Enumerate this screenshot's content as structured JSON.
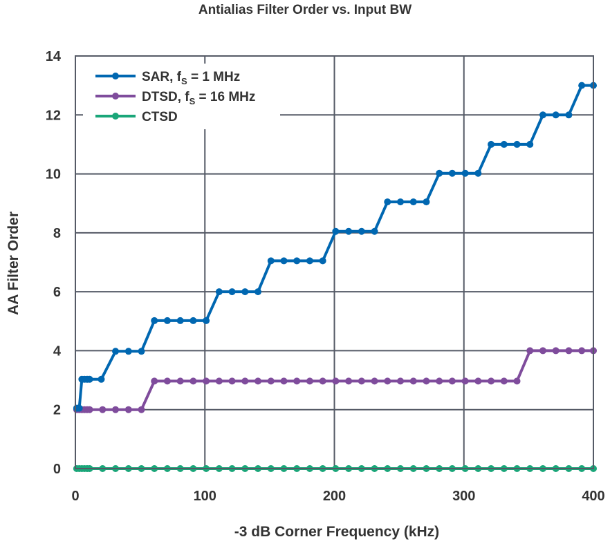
{
  "chart_data": {
    "type": "line",
    "title": "Antialias Filter Order vs. Input BW",
    "xlabel": "-3 dB Corner Frequency (kHz)",
    "ylabel": "AA Filter Order",
    "xlim": [
      0,
      400
    ],
    "ylim": [
      0,
      14
    ],
    "xticks": [
      0,
      100,
      200,
      300,
      400
    ],
    "yticks": [
      0,
      2,
      4,
      6,
      8,
      10,
      12,
      14
    ],
    "grid": true,
    "legend_position": "top-left",
    "series": [
      {
        "name": "SAR, fS = 1 MHz",
        "label_main": "SAR, f",
        "label_sub": "S",
        "label_tail": " = 1 MHz",
        "color": "#0067b1",
        "x": [
          1,
          2,
          3,
          5,
          7,
          9,
          11,
          20,
          31,
          41,
          51,
          61,
          71,
          81,
          91,
          101,
          111,
          121,
          131,
          141,
          151,
          161,
          171,
          181,
          191,
          201,
          211,
          221,
          231,
          241,
          251,
          261,
          271,
          281,
          291,
          301,
          311,
          321,
          331,
          341,
          351,
          361,
          371,
          381,
          391,
          400
        ],
        "y": [
          2.05,
          2.05,
          2.05,
          3.03,
          3.03,
          3.03,
          3.03,
          3.03,
          3.98,
          3.98,
          3.98,
          5.02,
          5.02,
          5.02,
          5.02,
          5.02,
          6.0,
          6.0,
          6.0,
          6.0,
          7.05,
          7.05,
          7.05,
          7.05,
          7.05,
          8.05,
          8.05,
          8.05,
          8.05,
          9.05,
          9.05,
          9.05,
          9.05,
          10.02,
          10.02,
          10.02,
          10.02,
          11.0,
          11.0,
          11.0,
          11.0,
          12.0,
          12.0,
          12.0,
          13.0,
          13.0
        ]
      },
      {
        "name": "DTSD, fS = 16 MHz",
        "label_main": "DTSD, f",
        "label_sub": "S",
        "label_tail": " = 16 MHz",
        "color": "#7f4c9c",
        "x": [
          1,
          3,
          5,
          7,
          9,
          11,
          21,
          31,
          41,
          51,
          61,
          71,
          81,
          91,
          101,
          111,
          121,
          131,
          141,
          151,
          161,
          171,
          181,
          191,
          201,
          211,
          221,
          231,
          241,
          251,
          261,
          271,
          281,
          291,
          301,
          311,
          321,
          331,
          341,
          351,
          361,
          371,
          381,
          391,
          400
        ],
        "y": [
          2.0,
          2.0,
          2.0,
          2.0,
          2.0,
          2.0,
          2.0,
          2.0,
          2.0,
          2.0,
          2.97,
          2.97,
          2.97,
          2.97,
          2.97,
          2.97,
          2.97,
          2.97,
          2.97,
          2.97,
          2.97,
          2.97,
          2.97,
          2.97,
          2.97,
          2.97,
          2.97,
          2.97,
          2.97,
          2.97,
          2.97,
          2.97,
          2.97,
          2.97,
          2.97,
          2.97,
          2.97,
          2.97,
          2.97,
          4.0,
          4.0,
          4.0,
          4.0,
          4.0,
          4.0
        ]
      },
      {
        "name": "CTSD",
        "label_main": "CTSD",
        "label_sub": "",
        "label_tail": "",
        "color": "#1aa679",
        "x": [
          1,
          3,
          5,
          7,
          9,
          11,
          21,
          31,
          41,
          51,
          61,
          71,
          81,
          91,
          101,
          111,
          121,
          131,
          141,
          151,
          161,
          171,
          181,
          191,
          201,
          211,
          221,
          231,
          241,
          251,
          261,
          271,
          281,
          291,
          301,
          311,
          321,
          331,
          341,
          351,
          361,
          371,
          381,
          391,
          400
        ],
        "y": [
          0,
          0,
          0,
          0,
          0,
          0,
          0,
          0,
          0,
          0,
          0,
          0,
          0,
          0,
          0,
          0,
          0,
          0,
          0,
          0,
          0,
          0,
          0,
          0,
          0,
          0,
          0,
          0,
          0,
          0,
          0,
          0,
          0,
          0,
          0,
          0,
          0,
          0,
          0,
          0,
          0,
          0,
          0,
          0,
          0
        ]
      }
    ]
  }
}
